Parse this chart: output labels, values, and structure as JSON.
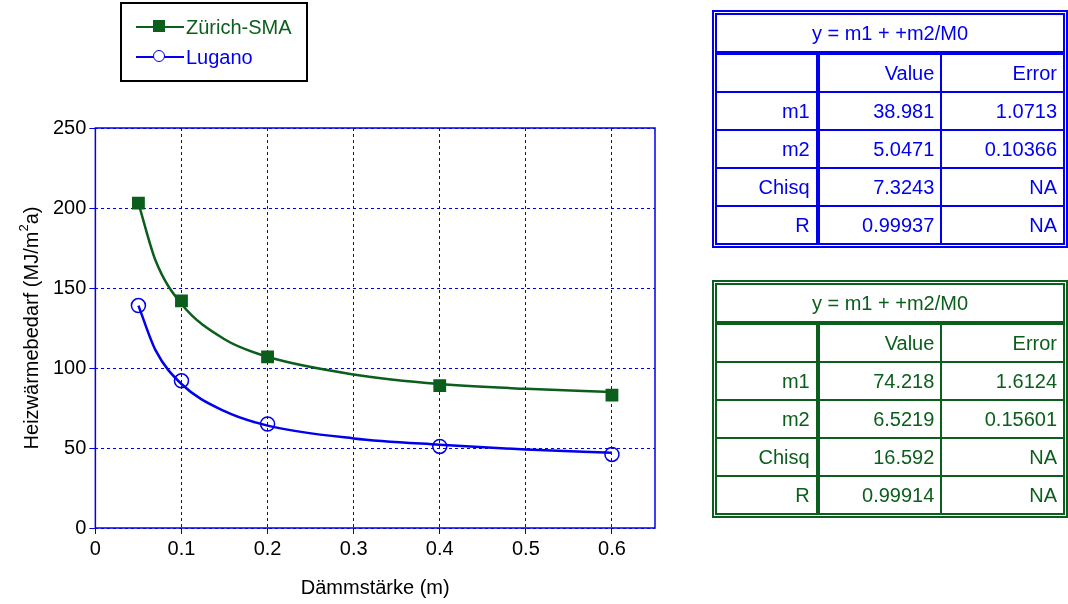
{
  "chart_data": [
    {
      "type": "scatter",
      "xlabel": "Dämmstärke (m)",
      "ylabel": "Heizwärmebedarf (MJ/m$^{2}$a)",
      "xlim": [
        0,
        0.65
      ],
      "xticks": [
        0,
        0.1,
        0.2,
        0.3,
        0.4,
        0.5,
        0.6
      ],
      "ylim": [
        0,
        250
      ],
      "yticks": [
        0,
        50,
        100,
        150,
        200,
        250
      ],
      "grid": true,
      "legend": "top left",
      "series": [
        {
          "name": "Zürich-SMA",
          "color": "#0b5e1c",
          "marker": "square",
          "x": [
            0.05,
            0.1,
            0.2,
            0.4,
            0.6
          ],
          "values": [
            203,
            142,
            107,
            89,
            83
          ]
        },
        {
          "name": "Lugano",
          "color": "#0000ee",
          "marker": "circle",
          "x": [
            0.05,
            0.1,
            0.2,
            0.4,
            0.6
          ],
          "values": [
            139,
            92,
            65,
            51,
            46
          ]
        },
        {
          "type": "line",
          "color": "#0b5e1c",
          "marker": "none",
          "x": [
            0.05,
            0.07,
            0.1,
            0.15,
            0.2,
            0.3,
            0.4,
            0.5,
            0.6
          ],
          "values": [
            203,
            167,
            140,
            118,
            107,
            96,
            90,
            87,
            85
          ]
        },
        {
          "type": "line",
          "color": "#0000ee",
          "marker": "none",
          "x": [
            0.05,
            0.07,
            0.1,
            0.15,
            0.2,
            0.3,
            0.4,
            0.5,
            0.6
          ],
          "values": [
            139,
            111,
            90,
            73,
            64,
            56,
            52,
            49,
            47
          ]
        }
      ]
    },
    {
      "type": "other",
      "title": "y = m1 + +m2/M0",
      "categories": [
        "m1",
        "m2",
        "Chisq",
        "R"
      ],
      "series": [
        {
          "name": "Value",
          "color": "#0000ee",
          "values": [
            38.981,
            5.0471,
            7.3243,
            0.99937
          ],
          "value_labels": [
            "38.981",
            "5.0471",
            "7.3243",
            "0.99937"
          ]
        },
        {
          "name": "Error",
          "color": "#0000ee",
          "values": [
            1.0713,
            0.10366,
            null,
            null
          ],
          "value_labels": [
            "1.0713",
            "0.10366",
            "NA",
            "NA"
          ]
        }
      ]
    },
    {
      "type": "other",
      "title": "y = m1 + +m2/M0",
      "categories": [
        "m1",
        "m2",
        "Chisq",
        "R"
      ],
      "series": [
        {
          "name": "Value",
          "color": "#0b5e1c",
          "values": [
            74.218,
            6.5219,
            16.592,
            0.99914
          ],
          "value_labels": [
            "74.218",
            "6.5219",
            "16.592",
            "0.99914"
          ]
        },
        {
          "name": "Error",
          "color": "#0b5e1c",
          "values": [
            1.6124,
            0.15601,
            null,
            null
          ],
          "value_labels": [
            "1.6124",
            "0.15601",
            "NA",
            "NA"
          ]
        }
      ]
    }
  ]
}
